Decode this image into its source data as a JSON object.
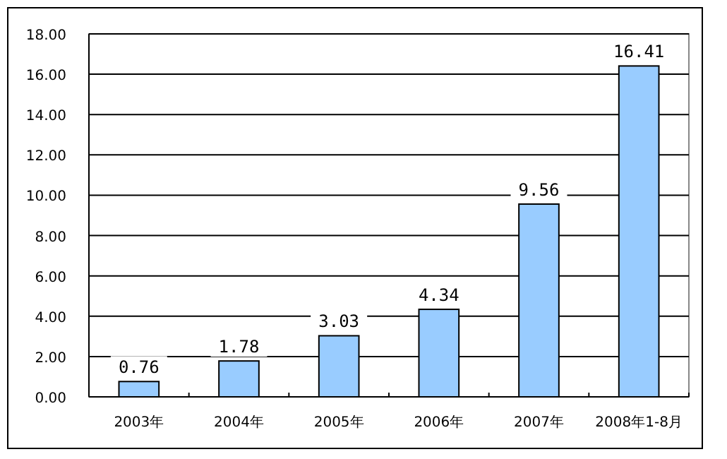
{
  "chart_data": {
    "type": "bar",
    "categories": [
      "2003年",
      "2004年",
      "2005年",
      "2006年",
      "2007年",
      "2008年1-8月"
    ],
    "values": [
      0.76,
      1.78,
      3.03,
      4.34,
      9.56,
      16.41
    ],
    "color": "#99ccff",
    "data_labels": true,
    "grid": "y",
    "ylim": [
      0,
      18
    ],
    "yticks": [
      {
        "value": 0,
        "label": "0.00"
      },
      {
        "value": 2,
        "label": "2.00"
      },
      {
        "value": 4,
        "label": "4.00"
      },
      {
        "value": 6,
        "label": "6.00"
      },
      {
        "value": 8,
        "label": "8.00"
      },
      {
        "value": 10,
        "label": "10.00"
      },
      {
        "value": 12,
        "label": "12.00"
      },
      {
        "value": 14,
        "label": "14.00"
      },
      {
        "value": 16,
        "label": "16.00"
      },
      {
        "value": 18,
        "label": "18.00"
      }
    ]
  }
}
